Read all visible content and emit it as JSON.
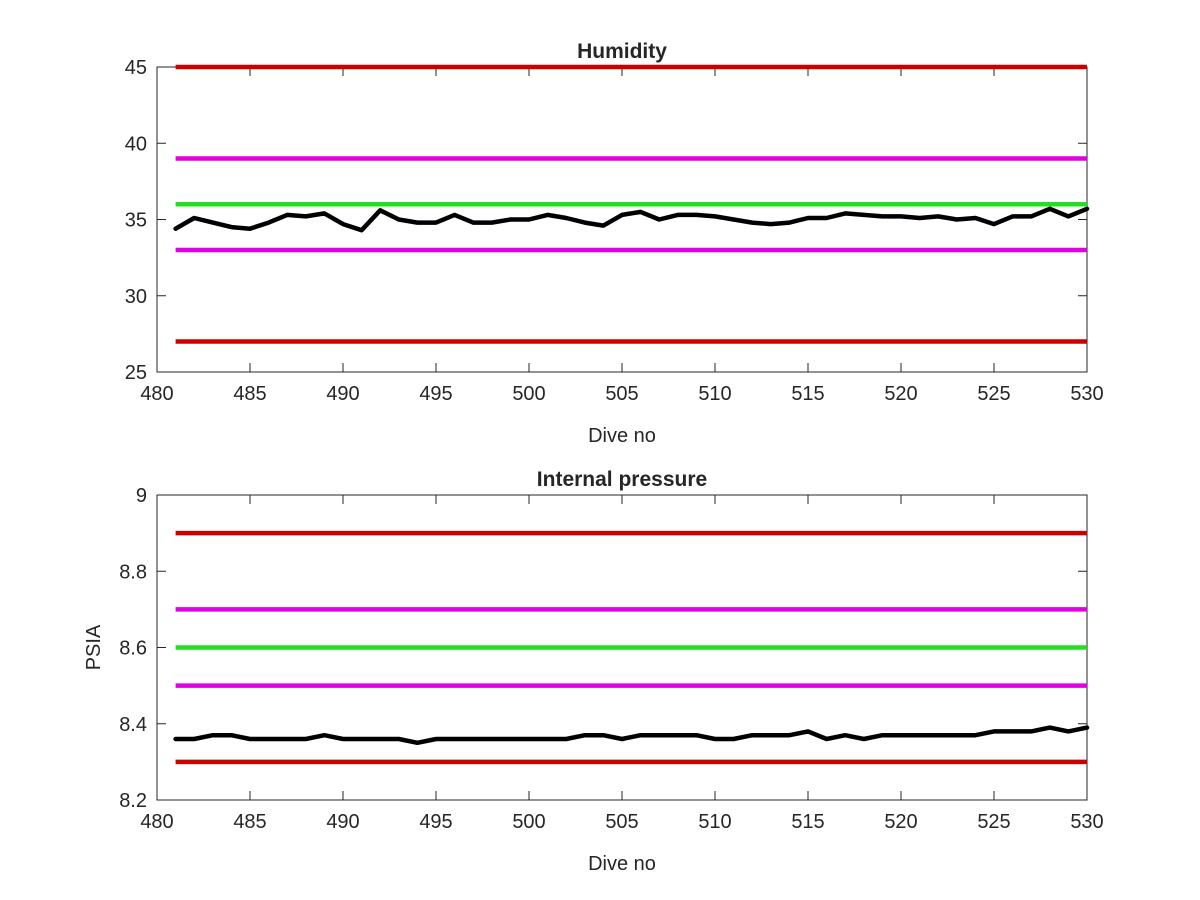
{
  "chart_data": [
    {
      "type": "line",
      "title": "Humidity",
      "xlabel": "Dive no",
      "ylabel": "",
      "xlim": [
        480,
        530
      ],
      "ylim": [
        25,
        45
      ],
      "xticks": [
        "480",
        "485",
        "490",
        "495",
        "500",
        "505",
        "510",
        "515",
        "520",
        "525",
        "530"
      ],
      "yticks": [
        "25",
        "30",
        "35",
        "40",
        "45"
      ],
      "grid": false,
      "legend": "none",
      "thresholds": [
        {
          "y": 45,
          "color": "#cc0000",
          "x": [
            481,
            530
          ]
        },
        {
          "y": 39,
          "color": "#e000e0",
          "x": [
            481,
            530
          ]
        },
        {
          "y": 36,
          "color": "#22e01e",
          "x": [
            481,
            530
          ]
        },
        {
          "y": 33,
          "color": "#e000e0",
          "x": [
            481,
            530
          ]
        },
        {
          "y": 27,
          "color": "#cc0000",
          "x": [
            481,
            530
          ]
        }
      ],
      "series": [
        {
          "color": "#000000",
          "x": [
            481,
            482,
            483,
            484,
            485,
            486,
            487,
            488,
            489,
            490,
            491,
            492,
            493,
            494,
            495,
            496,
            497,
            498,
            499,
            500,
            501,
            502,
            503,
            504,
            505,
            506,
            507,
            508,
            509,
            510,
            511,
            512,
            513,
            514,
            515,
            516,
            517,
            518,
            519,
            520,
            521,
            522,
            523,
            524,
            525,
            526,
            527,
            528,
            529,
            530
          ],
          "values": [
            34.4,
            35.1,
            34.8,
            34.5,
            34.4,
            34.8,
            35.3,
            35.2,
            35.4,
            34.7,
            34.3,
            35.6,
            35.0,
            34.8,
            34.8,
            35.3,
            34.8,
            34.8,
            35.0,
            35.0,
            35.3,
            35.1,
            34.8,
            34.6,
            35.3,
            35.5,
            35.0,
            35.3,
            35.3,
            35.2,
            35.0,
            34.8,
            34.7,
            34.8,
            35.1,
            35.1,
            35.4,
            35.3,
            35.2,
            35.2,
            35.1,
            35.2,
            35.0,
            35.1,
            34.7,
            35.2,
            35.2,
            35.7,
            35.2,
            35.7
          ]
        }
      ]
    },
    {
      "type": "line",
      "title": "Internal pressure",
      "xlabel": "Dive no",
      "ylabel": "PSIA",
      "xlim": [
        480,
        530
      ],
      "ylim": [
        8.2,
        9.0
      ],
      "xticks": [
        "480",
        "485",
        "490",
        "495",
        "500",
        "505",
        "510",
        "515",
        "520",
        "525",
        "530"
      ],
      "yticks": [
        "8.2",
        "8.4",
        "8.6",
        "8.8",
        "9"
      ],
      "grid": false,
      "legend": "none",
      "thresholds": [
        {
          "y": 8.9,
          "color": "#cc0000",
          "x": [
            481,
            530
          ]
        },
        {
          "y": 8.7,
          "color": "#e000e0",
          "x": [
            481,
            530
          ]
        },
        {
          "y": 8.6,
          "color": "#22e01e",
          "x": [
            481,
            530
          ]
        },
        {
          "y": 8.5,
          "color": "#e000e0",
          "x": [
            481,
            530
          ]
        },
        {
          "y": 8.3,
          "color": "#cc0000",
          "x": [
            481,
            530
          ]
        }
      ],
      "series": [
        {
          "color": "#000000",
          "x": [
            481,
            482,
            483,
            484,
            485,
            486,
            487,
            488,
            489,
            490,
            491,
            492,
            493,
            494,
            495,
            496,
            497,
            498,
            499,
            500,
            501,
            502,
            503,
            504,
            505,
            506,
            507,
            508,
            509,
            510,
            511,
            512,
            513,
            514,
            515,
            516,
            517,
            518,
            519,
            520,
            521,
            522,
            523,
            524,
            525,
            526,
            527,
            528,
            529,
            530
          ],
          "values": [
            8.36,
            8.36,
            8.37,
            8.37,
            8.36,
            8.36,
            8.36,
            8.36,
            8.37,
            8.36,
            8.36,
            8.36,
            8.36,
            8.35,
            8.36,
            8.36,
            8.36,
            8.36,
            8.36,
            8.36,
            8.36,
            8.36,
            8.37,
            8.37,
            8.36,
            8.37,
            8.37,
            8.37,
            8.37,
            8.36,
            8.36,
            8.37,
            8.37,
            8.37,
            8.38,
            8.36,
            8.37,
            8.36,
            8.37,
            8.37,
            8.37,
            8.37,
            8.37,
            8.37,
            8.38,
            8.38,
            8.38,
            8.39,
            8.38,
            8.39
          ]
        }
      ]
    }
  ]
}
